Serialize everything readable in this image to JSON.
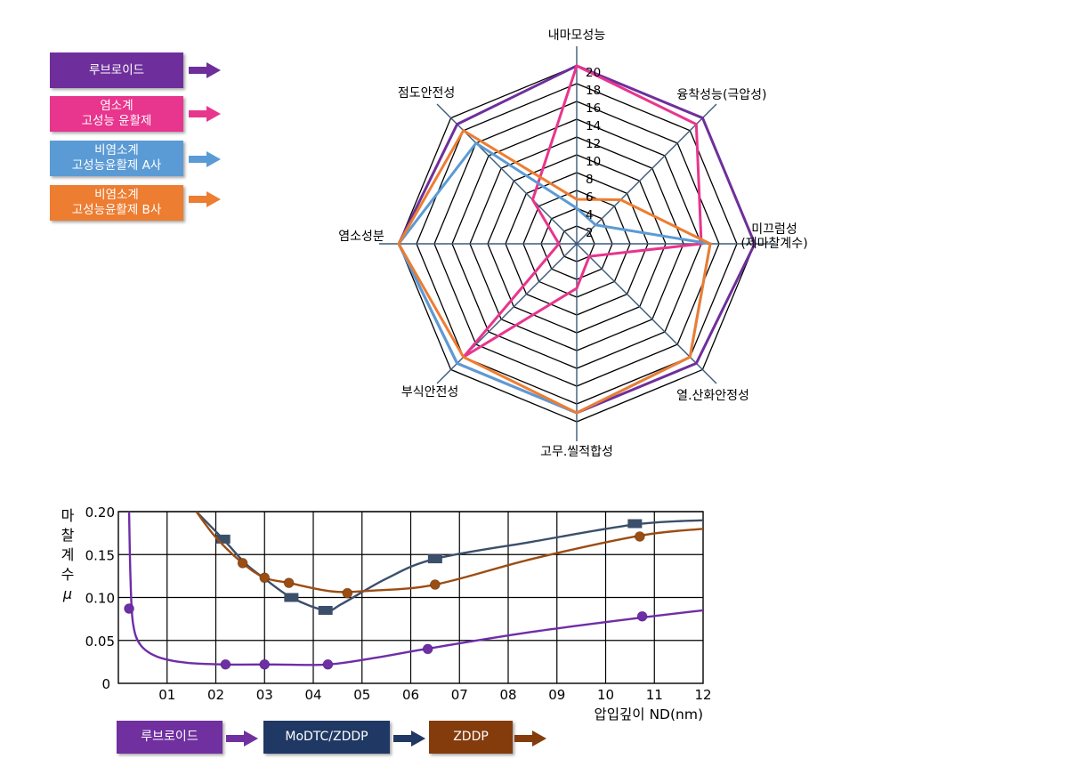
{
  "radar_legend": [
    {
      "label": "루브로이드",
      "color": "#6e2f9c"
    },
    {
      "label": "염소계\n고성능 윤활제",
      "color": "#e8358d"
    },
    {
      "label": "비염소계\n고성능윤활제 A사",
      "color": "#5b9bd5"
    },
    {
      "label": "비염소계\n고성능윤활제 B사",
      "color": "#ed7d31"
    }
  ],
  "line_legend": [
    {
      "label": "루브로이드",
      "color": "#7030a0",
      "arrow_color": "#7030a0"
    },
    {
      "label": "MoDTC/ZDDP",
      "color": "#1f3864",
      "arrow_color": "#1f3864"
    },
    {
      "label": "ZDDP",
      "color": "#843c0c",
      "arrow_color": "#843c0c"
    }
  ],
  "chart_data": [
    {
      "type": "radar",
      "axes": [
        "내마모성능",
        "융착성능(극압성)",
        "미끄럼성\n(제마찰계수)",
        "열.산화안정성",
        "고무.씰적합성",
        "부식안전성",
        "염소성분",
        "점도안전성"
      ],
      "scale_labels": [
        2,
        4,
        6,
        8,
        10,
        12,
        14,
        16,
        18,
        20
      ],
      "rmax": 20,
      "series": [
        {
          "color": "#6e2f9c",
          "values": [
            20,
            20,
            20,
            19,
            19,
            19,
            20,
            19
          ]
        },
        {
          "color": "#e8358d",
          "values": [
            20,
            19,
            14,
            2,
            5,
            18,
            2,
            7
          ]
        },
        {
          "color": "#5b9bd5",
          "values": [
            4,
            3,
            15,
            18,
            19,
            19,
            20,
            16
          ]
        },
        {
          "color": "#ed7d31",
          "values": [
            5,
            7,
            15,
            18,
            19,
            18,
            20,
            18
          ]
        }
      ]
    },
    {
      "type": "line",
      "ylabel": "마\n찰\n계\n수\nμ",
      "xlabel": "압입깊이 ND(nm)",
      "x_ticks": [
        "01",
        "02",
        "03",
        "04",
        "05",
        "06",
        "07",
        "08",
        "09",
        "10",
        "11",
        "12"
      ],
      "y_ticks": [
        "0",
        "0.05",
        "0.10",
        "0.15",
        "0.20"
      ],
      "xlim": [
        0,
        12
      ],
      "ylim": [
        0,
        0.2
      ],
      "grid": true,
      "series": [
        {
          "color": "#6f2da8",
          "marker": "circle",
          "curve": [
            [
              0.22,
              0.2
            ],
            [
              0.25,
              0.12
            ],
            [
              0.3,
              0.07
            ],
            [
              0.45,
              0.045
            ],
            [
              0.8,
              0.031
            ],
            [
              1.4,
              0.024
            ],
            [
              2.2,
              0.022
            ],
            [
              3.2,
              0.022
            ],
            [
              4.3,
              0.022
            ],
            [
              5.3,
              0.03
            ],
            [
              6.3,
              0.04
            ],
            [
              8.5,
              0.06
            ],
            [
              10.8,
              0.077
            ],
            [
              12.0,
              0.085
            ]
          ],
          "points": [
            [
              0.22,
              0.087
            ],
            [
              2.2,
              0.022
            ],
            [
              3.0,
              0.022
            ],
            [
              4.3,
              0.022
            ],
            [
              6.35,
              0.04
            ],
            [
              10.75,
              0.078
            ]
          ]
        },
        {
          "color": "#3b4f6b",
          "marker": "square",
          "curve": [
            [
              1.6,
              0.2
            ],
            [
              2.15,
              0.168
            ],
            [
              2.6,
              0.14
            ],
            [
              3.0,
              0.122
            ],
            [
              3.55,
              0.1
            ],
            [
              4.25,
              0.085
            ],
            [
              4.6,
              0.093
            ],
            [
              5.5,
              0.122
            ],
            [
              6.5,
              0.145
            ],
            [
              8.5,
              0.165
            ],
            [
              10.6,
              0.185
            ],
            [
              12.0,
              0.19
            ]
          ],
          "points": [
            [
              2.15,
              0.168
            ],
            [
              3.55,
              0.1
            ],
            [
              4.25,
              0.085
            ],
            [
              6.5,
              0.145
            ],
            [
              10.6,
              0.186
            ]
          ]
        },
        {
          "color": "#9b4d12",
          "marker": "circle",
          "curve": [
            [
              1.6,
              0.2
            ],
            [
              2.0,
              0.17
            ],
            [
              2.55,
              0.14
            ],
            [
              3.0,
              0.123
            ],
            [
              3.5,
              0.117
            ],
            [
              4.4,
              0.107
            ],
            [
              5.2,
              0.108
            ],
            [
              6.5,
              0.115
            ],
            [
              8.5,
              0.145
            ],
            [
              10.7,
              0.172
            ],
            [
              12.0,
              0.18
            ]
          ],
          "points": [
            [
              2.55,
              0.14
            ],
            [
              3.0,
              0.123
            ],
            [
              3.5,
              0.117
            ],
            [
              4.7,
              0.105
            ],
            [
              6.5,
              0.115
            ],
            [
              10.7,
              0.171
            ]
          ]
        }
      ]
    }
  ]
}
